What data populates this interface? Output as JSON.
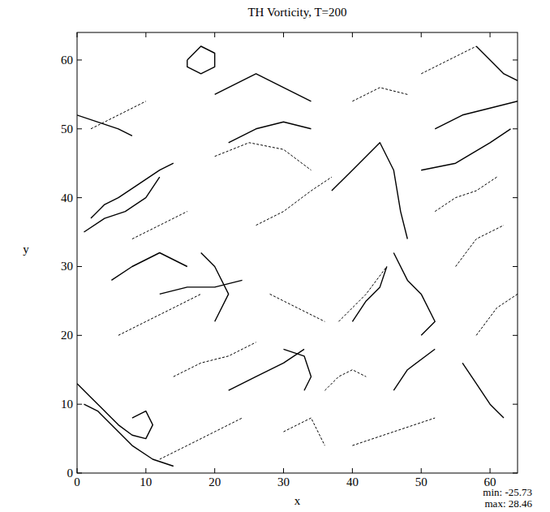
{
  "chart_data": {
    "type": "contour",
    "title": "TH Vorticity, T=200",
    "x_label": "x",
    "y_label": "y",
    "xlim": [
      0,
      64
    ],
    "ylim": [
      0,
      64
    ],
    "xticks": [
      0,
      10,
      20,
      30,
      40,
      50,
      60
    ],
    "yticks": [
      0,
      10,
      20,
      30,
      40,
      50,
      60
    ],
    "annotations": [
      "min: -25.73",
      "max: 28.46"
    ],
    "series": [
      {
        "line_style": "solid",
        "x": [
          0,
          2,
          4,
          6,
          8,
          10,
          11,
          10,
          8
        ],
        "y": [
          13,
          11,
          9,
          7,
          5.5,
          5,
          7,
          9,
          8
        ]
      },
      {
        "line_style": "solid",
        "x": [
          1,
          3,
          5,
          8,
          11,
          14
        ],
        "y": [
          10,
          9,
          7,
          4,
          2,
          1
        ]
      },
      {
        "line_style": "solid",
        "x": [
          2,
          4,
          6,
          9,
          12,
          14
        ],
        "y": [
          37,
          39,
          40,
          42,
          44,
          45
        ]
      },
      {
        "line_style": "solid",
        "x": [
          1,
          4,
          7,
          10,
          12
        ],
        "y": [
          35,
          37,
          38,
          40,
          43
        ]
      },
      {
        "line_style": "solid",
        "x": [
          16,
          18,
          20,
          20,
          18,
          16,
          16
        ],
        "y": [
          60,
          62,
          61,
          59,
          58,
          59,
          60
        ]
      },
      {
        "line_style": "solid",
        "x": [
          20,
          24,
          26,
          30,
          34
        ],
        "y": [
          55,
          57,
          58,
          56,
          54
        ]
      },
      {
        "line_style": "solid",
        "x": [
          37,
          40,
          44,
          46,
          47,
          48
        ],
        "y": [
          41,
          44,
          48,
          44,
          38,
          34
        ]
      },
      {
        "line_style": "solid",
        "x": [
          46,
          48,
          50,
          52,
          50
        ],
        "y": [
          32,
          28,
          26,
          22,
          20
        ]
      },
      {
        "line_style": "solid",
        "x": [
          22,
          26,
          30,
          33
        ],
        "y": [
          12,
          14,
          16,
          18
        ]
      },
      {
        "line_style": "solid",
        "x": [
          30,
          33,
          34,
          33
        ],
        "y": [
          18,
          17,
          14,
          12
        ]
      },
      {
        "line_style": "solid",
        "x": [
          5,
          8,
          12,
          16
        ],
        "y": [
          28,
          30,
          32,
          30
        ]
      },
      {
        "line_style": "solid",
        "x": [
          20,
          22,
          20,
          18
        ],
        "y": [
          22,
          26,
          30,
          32
        ]
      },
      {
        "line_style": "solid",
        "x": [
          52,
          56,
          60,
          64
        ],
        "y": [
          50,
          52,
          53,
          54
        ]
      },
      {
        "line_style": "solid",
        "x": [
          50,
          55,
          60,
          63
        ],
        "y": [
          44,
          45,
          48,
          50
        ]
      },
      {
        "line_style": "solid",
        "x": [
          56,
          58,
          60,
          62
        ],
        "y": [
          16,
          13,
          10,
          8
        ]
      },
      {
        "line_style": "solid",
        "x": [
          46,
          48,
          52
        ],
        "y": [
          12,
          15,
          18
        ]
      },
      {
        "line_style": "solid",
        "x": [
          58,
          60,
          62,
          64
        ],
        "y": [
          62,
          60,
          58,
          57
        ]
      },
      {
        "line_style": "solid",
        "x": [
          22,
          26,
          30,
          34
        ],
        "y": [
          48,
          50,
          51,
          50
        ]
      },
      {
        "line_style": "solid",
        "x": [
          12,
          16,
          20,
          24
        ],
        "y": [
          26,
          27,
          27,
          28
        ]
      },
      {
        "line_style": "solid",
        "x": [
          40,
          42,
          44,
          45
        ],
        "y": [
          22,
          25,
          27,
          30
        ]
      },
      {
        "line_style": "solid",
        "x": [
          0,
          3,
          6,
          8
        ],
        "y": [
          52,
          51,
          50,
          49
        ]
      },
      {
        "line_style": "dashed",
        "x": [
          6,
          10,
          14,
          18
        ],
        "y": [
          20,
          22,
          24,
          26
        ]
      },
      {
        "line_style": "dashed",
        "x": [
          20,
          25,
          30,
          34
        ],
        "y": [
          46,
          48,
          47,
          44
        ]
      },
      {
        "line_style": "dashed",
        "x": [
          38,
          42,
          45
        ],
        "y": [
          22,
          26,
          30
        ]
      },
      {
        "line_style": "dashed",
        "x": [
          26,
          30,
          34,
          37
        ],
        "y": [
          36,
          38,
          41,
          43
        ]
      },
      {
        "line_style": "dashed",
        "x": [
          2,
          6,
          10
        ],
        "y": [
          50,
          52,
          54
        ]
      },
      {
        "line_style": "dashed",
        "x": [
          40,
          46,
          52
        ],
        "y": [
          4,
          6,
          8
        ]
      },
      {
        "line_style": "dashed",
        "x": [
          12,
          16,
          20,
          24
        ],
        "y": [
          2,
          4,
          6,
          8
        ]
      },
      {
        "line_style": "dashed",
        "x": [
          50,
          54,
          58
        ],
        "y": [
          58,
          60,
          62
        ]
      },
      {
        "line_style": "dashed",
        "x": [
          55,
          58,
          62
        ],
        "y": [
          30,
          34,
          36
        ]
      },
      {
        "line_style": "dashed",
        "x": [
          28,
          32,
          36
        ],
        "y": [
          26,
          24,
          22
        ]
      },
      {
        "line_style": "dashed",
        "x": [
          40,
          44,
          48
        ],
        "y": [
          54,
          56,
          55
        ]
      },
      {
        "line_style": "dashed",
        "x": [
          8,
          12,
          16
        ],
        "y": [
          34,
          36,
          38
        ]
      },
      {
        "line_style": "dashed",
        "x": [
          30,
          34,
          36
        ],
        "y": [
          6,
          8,
          4
        ]
      },
      {
        "line_style": "dashed",
        "x": [
          58,
          61,
          64
        ],
        "y": [
          20,
          24,
          26
        ]
      },
      {
        "line_style": "dashed",
        "x": [
          14,
          18,
          22,
          26
        ],
        "y": [
          14,
          16,
          17,
          19
        ]
      },
      {
        "line_style": "dashed",
        "x": [
          52,
          55,
          58,
          61
        ],
        "y": [
          38,
          40,
          41,
          43
        ]
      },
      {
        "line_style": "dashed",
        "x": [
          36,
          38,
          40,
          42
        ],
        "y": [
          12,
          14,
          15,
          14
        ]
      }
    ]
  }
}
